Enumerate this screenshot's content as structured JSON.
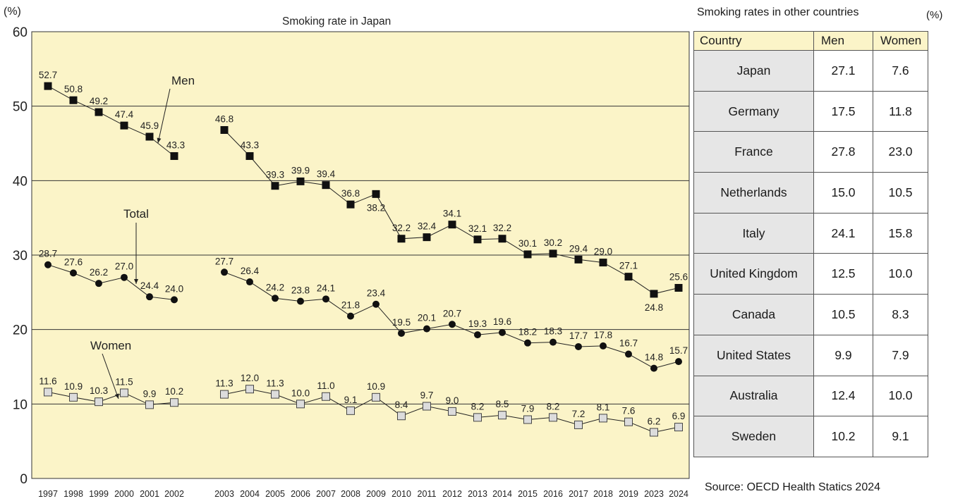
{
  "chart_data": {
    "type": "line",
    "title": "Smoking rate in Japan",
    "ylabel": "(%)",
    "ylim": [
      0,
      60
    ],
    "yticks": [
      0,
      10,
      20,
      30,
      40,
      50,
      60
    ],
    "grid": true,
    "background": "#fbf4c8",
    "categories": [
      "1997",
      "1998",
      "1999",
      "2000",
      "2001",
      "2002",
      "2003",
      "2004",
      "2005",
      "2006",
      "2007",
      "2008",
      "2009",
      "2010",
      "2011",
      "2012",
      "2013",
      "2014",
      "2015",
      "2016",
      "2017",
      "2018",
      "2019",
      "2023",
      "2024"
    ],
    "series": [
      {
        "name": "Men",
        "marker": "square-filled",
        "values": [
          52.7,
          50.8,
          49.2,
          47.4,
          45.9,
          43.3,
          46.8,
          43.3,
          39.3,
          39.9,
          39.4,
          36.8,
          38.2,
          32.2,
          32.4,
          34.1,
          32.1,
          32.2,
          30.1,
          30.2,
          29.4,
          29.0,
          27.1,
          24.8,
          25.6
        ],
        "labels": [
          "52.7",
          "50.8",
          "49.2",
          "47.4",
          "45.9",
          "43.3",
          "46.8",
          "43.3",
          "39.3",
          "39.9",
          "39.4",
          "36.8",
          "38.2",
          "32.2",
          "32.4",
          "34.1",
          "32.1",
          "32.2",
          "30.1",
          "30.2",
          "29.4",
          "29.0",
          "27.1",
          "24.8",
          "25.6"
        ]
      },
      {
        "name": "Total",
        "marker": "circle-filled",
        "values": [
          28.7,
          27.6,
          26.2,
          27.0,
          24.4,
          24.0,
          27.7,
          26.4,
          24.2,
          23.8,
          24.1,
          21.8,
          23.4,
          19.5,
          20.1,
          20.7,
          19.3,
          19.6,
          18.2,
          18.3,
          17.7,
          17.8,
          16.7,
          14.8,
          15.7
        ],
        "labels": [
          "28.7",
          "27.6",
          "26.2",
          "27.0",
          "24.4",
          "24.0",
          "27.7",
          "26.4",
          "24.2",
          "23.8",
          "24.1",
          "21.8",
          "23.4",
          "19.5",
          "20.1",
          "20.7",
          "19.3",
          "19.6",
          "18.2",
          "18.3",
          "17.7",
          "17.8",
          "16.7",
          "14.8",
          "15.7"
        ]
      },
      {
        "name": "Women",
        "marker": "square-open",
        "values": [
          11.6,
          10.9,
          10.3,
          11.5,
          9.9,
          10.2,
          11.3,
          12.0,
          11.3,
          10.0,
          11.0,
          9.1,
          10.9,
          8.4,
          9.7,
          9.0,
          8.2,
          8.5,
          7.9,
          8.2,
          7.2,
          8.1,
          7.6,
          6.2,
          6.9
        ],
        "labels": [
          "11.6",
          "10.9",
          "10.3",
          "11.5",
          "9.9",
          "10.2",
          "11.3",
          "12.0",
          "11.3",
          "10.0",
          "11.0",
          "9.1",
          "10.9",
          "8.4",
          "9.7",
          "9.0",
          "8.2",
          "8.5",
          "7.9",
          "8.2",
          "7.2",
          "8.1",
          "7.6",
          "6.2",
          "6.9"
        ]
      }
    ]
  },
  "other_countries": {
    "title": "Smoking rates in other countries",
    "unit": "(%)",
    "headers": [
      "Country",
      "Men",
      "Women"
    ],
    "rows": [
      [
        "Japan",
        "27.1",
        "7.6"
      ],
      [
        "Germany",
        "17.5",
        "11.8"
      ],
      [
        "France",
        "27.8",
        "23.0"
      ],
      [
        "Netherlands",
        "15.0",
        "10.5"
      ],
      [
        "Italy",
        "24.1",
        "15.8"
      ],
      [
        "United Kingdom",
        "12.5",
        "10.0"
      ],
      [
        "Canada",
        "10.5",
        "8.3"
      ],
      [
        "United States",
        "9.9",
        "7.9"
      ],
      [
        "Australia",
        "12.4",
        "10.0"
      ],
      [
        "Sweden",
        "10.2",
        "9.1"
      ]
    ]
  },
  "source": "Source: OECD Health Statics 2024"
}
